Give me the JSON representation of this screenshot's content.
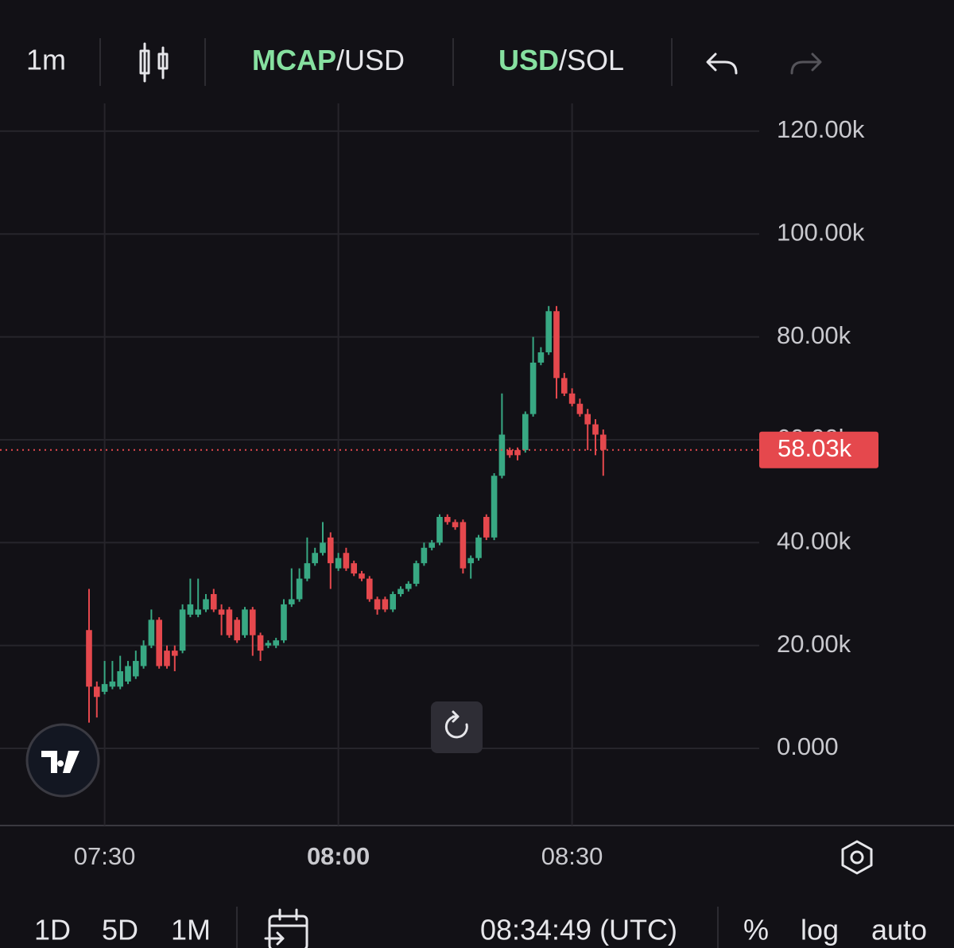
{
  "toolbar": {
    "interval": "1m",
    "mcap_usd": [
      "MCAP",
      "/USD"
    ],
    "usd_sol": [
      "USD",
      "/SOL"
    ]
  },
  "bottom_bar": {
    "ranges": [
      "1D",
      "5D",
      "1M"
    ],
    "clock": "08:34:49 (UTC)",
    "options": [
      "%",
      "log",
      "auto"
    ]
  },
  "chart_data": {
    "type": "candlestick",
    "up_color": "#38a883",
    "down_color": "#e5484d",
    "grid": true,
    "x": [
      "07:28",
      "07:29",
      "07:30",
      "07:31",
      "07:32",
      "07:33",
      "07:34",
      "07:35",
      "07:36",
      "07:37",
      "07:38",
      "07:39",
      "07:40",
      "07:41",
      "07:42",
      "07:43",
      "07:44",
      "07:45",
      "07:46",
      "07:47",
      "07:48",
      "07:49",
      "07:50",
      "07:51",
      "07:52",
      "07:53",
      "07:54",
      "07:55",
      "07:56",
      "07:57",
      "07:58",
      "07:59",
      "08:00",
      "08:01",
      "08:02",
      "08:03",
      "08:04",
      "08:05",
      "08:06",
      "08:07",
      "08:08",
      "08:09",
      "08:10",
      "08:11",
      "08:12",
      "08:13",
      "08:14",
      "08:15",
      "08:16",
      "08:17",
      "08:18",
      "08:19",
      "08:20",
      "08:21",
      "08:22",
      "08:23",
      "08:24",
      "08:25",
      "08:26",
      "08:27",
      "08:28",
      "08:29",
      "08:30",
      "08:31",
      "08:32",
      "08:33",
      "08:34"
    ],
    "open": [
      23000,
      12000,
      11000,
      12000,
      12000,
      13000,
      14000,
      16000,
      20000,
      25000,
      19000,
      19000,
      19000,
      26000,
      26000,
      27000,
      30000,
      27000,
      27000,
      25000,
      22000,
      27000,
      22000,
      20000,
      20000,
      21000,
      28000,
      29000,
      33000,
      36000,
      38000,
      41000,
      35000,
      38000,
      36000,
      34000,
      33000,
      29000,
      29000,
      27000,
      30000,
      31000,
      32000,
      36000,
      39000,
      40000,
      45000,
      44000,
      44000,
      36000,
      37000,
      45000,
      41000,
      53000,
      58000,
      58000,
      58000,
      65000,
      75000,
      77000,
      85000,
      72000,
      69000,
      67000,
      65000,
      63000,
      61000
    ],
    "high": [
      31000,
      13000,
      17000,
      17000,
      18000,
      17000,
      19000,
      21000,
      27000,
      25500,
      20000,
      20000,
      28000,
      33000,
      33000,
      30000,
      31000,
      28000,
      27500,
      25500,
      27500,
      27500,
      22500,
      21000,
      21500,
      29000,
      35000,
      35000,
      41000,
      39000,
      44000,
      42000,
      38000,
      39000,
      36500,
      34500,
      33500,
      29500,
      29500,
      30500,
      31500,
      32500,
      36500,
      40000,
      40500,
      45500,
      45500,
      44500,
      44500,
      37500,
      41500,
      45500,
      53500,
      69000,
      58500,
      58500,
      65500,
      80000,
      78000,
      86000,
      86000,
      73000,
      70000,
      68000,
      66000,
      64000,
      62000
    ],
    "low": [
      5000,
      6000,
      10500,
      11500,
      11500,
      12500,
      13500,
      15500,
      19500,
      15500,
      15500,
      15000,
      18500,
      25500,
      25500,
      26500,
      26500,
      22000,
      21500,
      20500,
      21500,
      18000,
      17000,
      19500,
      19500,
      20500,
      27500,
      28500,
      32500,
      35500,
      37500,
      31000,
      34500,
      34500,
      33500,
      32500,
      28500,
      26000,
      26500,
      26500,
      29500,
      30500,
      31500,
      35500,
      38500,
      39500,
      43500,
      42500,
      34000,
      33000,
      36500,
      40500,
      40500,
      52500,
      56500,
      56000,
      57500,
      64500,
      74500,
      76500,
      68000,
      68500,
      66500,
      64500,
      58000,
      57000,
      53000
    ],
    "close": [
      12000,
      10000,
      12500,
      13000,
      15000,
      16000,
      17000,
      20000,
      25000,
      16000,
      16000,
      18000,
      27000,
      28000,
      27000,
      29000,
      27000,
      26000,
      22000,
      21000,
      27000,
      22000,
      19000,
      20500,
      21000,
      28000,
      29000,
      33000,
      36000,
      38000,
      40000,
      36000,
      37000,
      35000,
      34000,
      33000,
      29000,
      27000,
      27000,
      30000,
      31000,
      32000,
      36000,
      39000,
      40000,
      45000,
      44000,
      43000,
      35000,
      37000,
      41000,
      41000,
      53000,
      61000,
      57000,
      57000,
      65000,
      75000,
      77000,
      85000,
      72000,
      69000,
      67000,
      65000,
      63000,
      61000,
      58030
    ],
    "xticks": [
      "07:30",
      "08:00",
      "08:30"
    ],
    "ylim": [
      -15000,
      125400
    ],
    "yticks": [
      {
        "value": 0,
        "label": "0.000"
      },
      {
        "value": 20000,
        "label": "20.00k"
      },
      {
        "value": 40000,
        "label": "40.00k"
      },
      {
        "value": 60000,
        "label": "60.00k"
      },
      {
        "value": 80000,
        "label": "80.00k"
      },
      {
        "value": 100000,
        "label": "100.00k"
      },
      {
        "value": 120000,
        "label": "120.00k"
      }
    ],
    "last_price": {
      "value": 58030,
      "label": "58.03k"
    }
  }
}
